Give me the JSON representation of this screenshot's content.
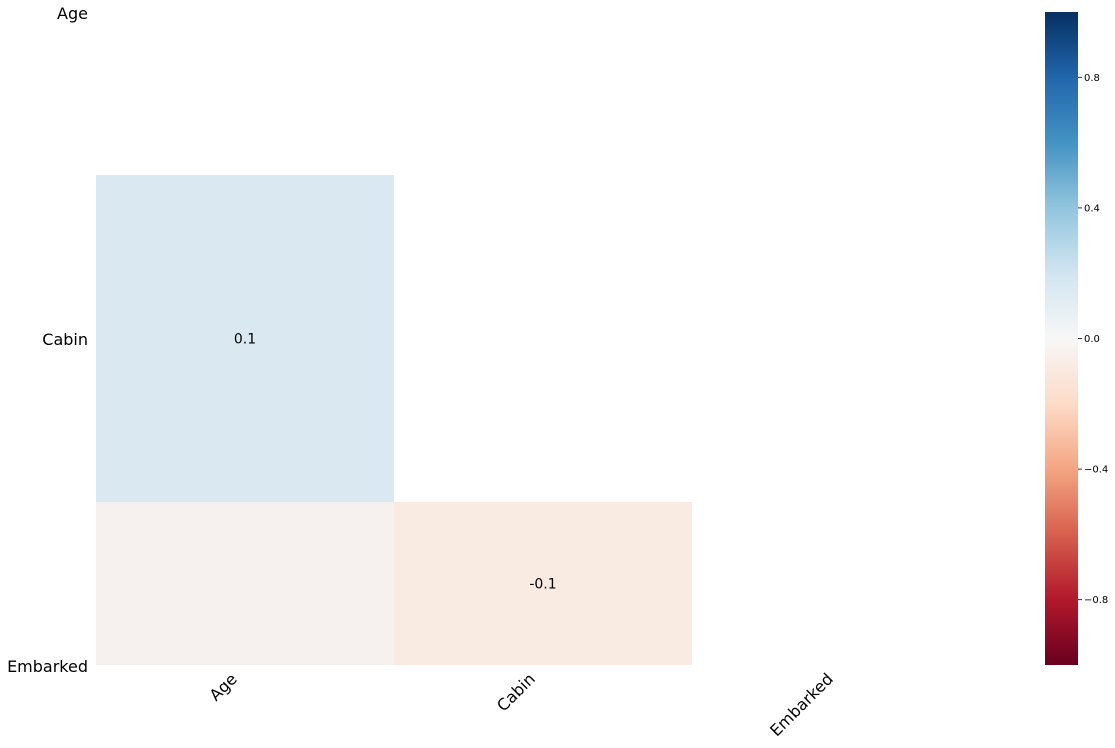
{
  "chart_data": {
    "type": "heatmap",
    "title": "",
    "rows": [
      "Age",
      "Cabin",
      "Embarked"
    ],
    "columns": [
      "Age",
      "Cabin",
      "Embarked"
    ],
    "mask": "upper-triangle-and-diagonal",
    "values": [
      [
        null,
        null,
        null
      ],
      [
        0.1,
        null,
        null
      ],
      [
        -0.05,
        -0.1,
        null
      ]
    ],
    "cell_labels": [
      [
        "",
        "",
        ""
      ],
      [
        "0.1",
        "",
        ""
      ],
      [
        "",
        "-0.1",
        ""
      ]
    ],
    "colormap": "RdBu",
    "vmin": -1,
    "vmax": 1,
    "colorbar": {
      "ticks": [
        0.8,
        0.4,
        0.0,
        -0.4,
        -0.8
      ],
      "tick_labels": [
        "0.8",
        "0.4",
        "0.0",
        "−0.4",
        "−0.8"
      ]
    },
    "colormap_stops": [
      "#67001f",
      "#b2182b",
      "#d6604d",
      "#f4a582",
      "#fddbc7",
      "#f7f7f7",
      "#d1e5f0",
      "#92c5de",
      "#4393c3",
      "#2166ac",
      "#053061"
    ],
    "cell_colors": [
      [
        null,
        null,
        null
      ],
      [
        "#dae8f1",
        null,
        null
      ],
      [
        "#f6f1ef",
        "#f9eae2",
        null
      ]
    ],
    "grid": false
  }
}
